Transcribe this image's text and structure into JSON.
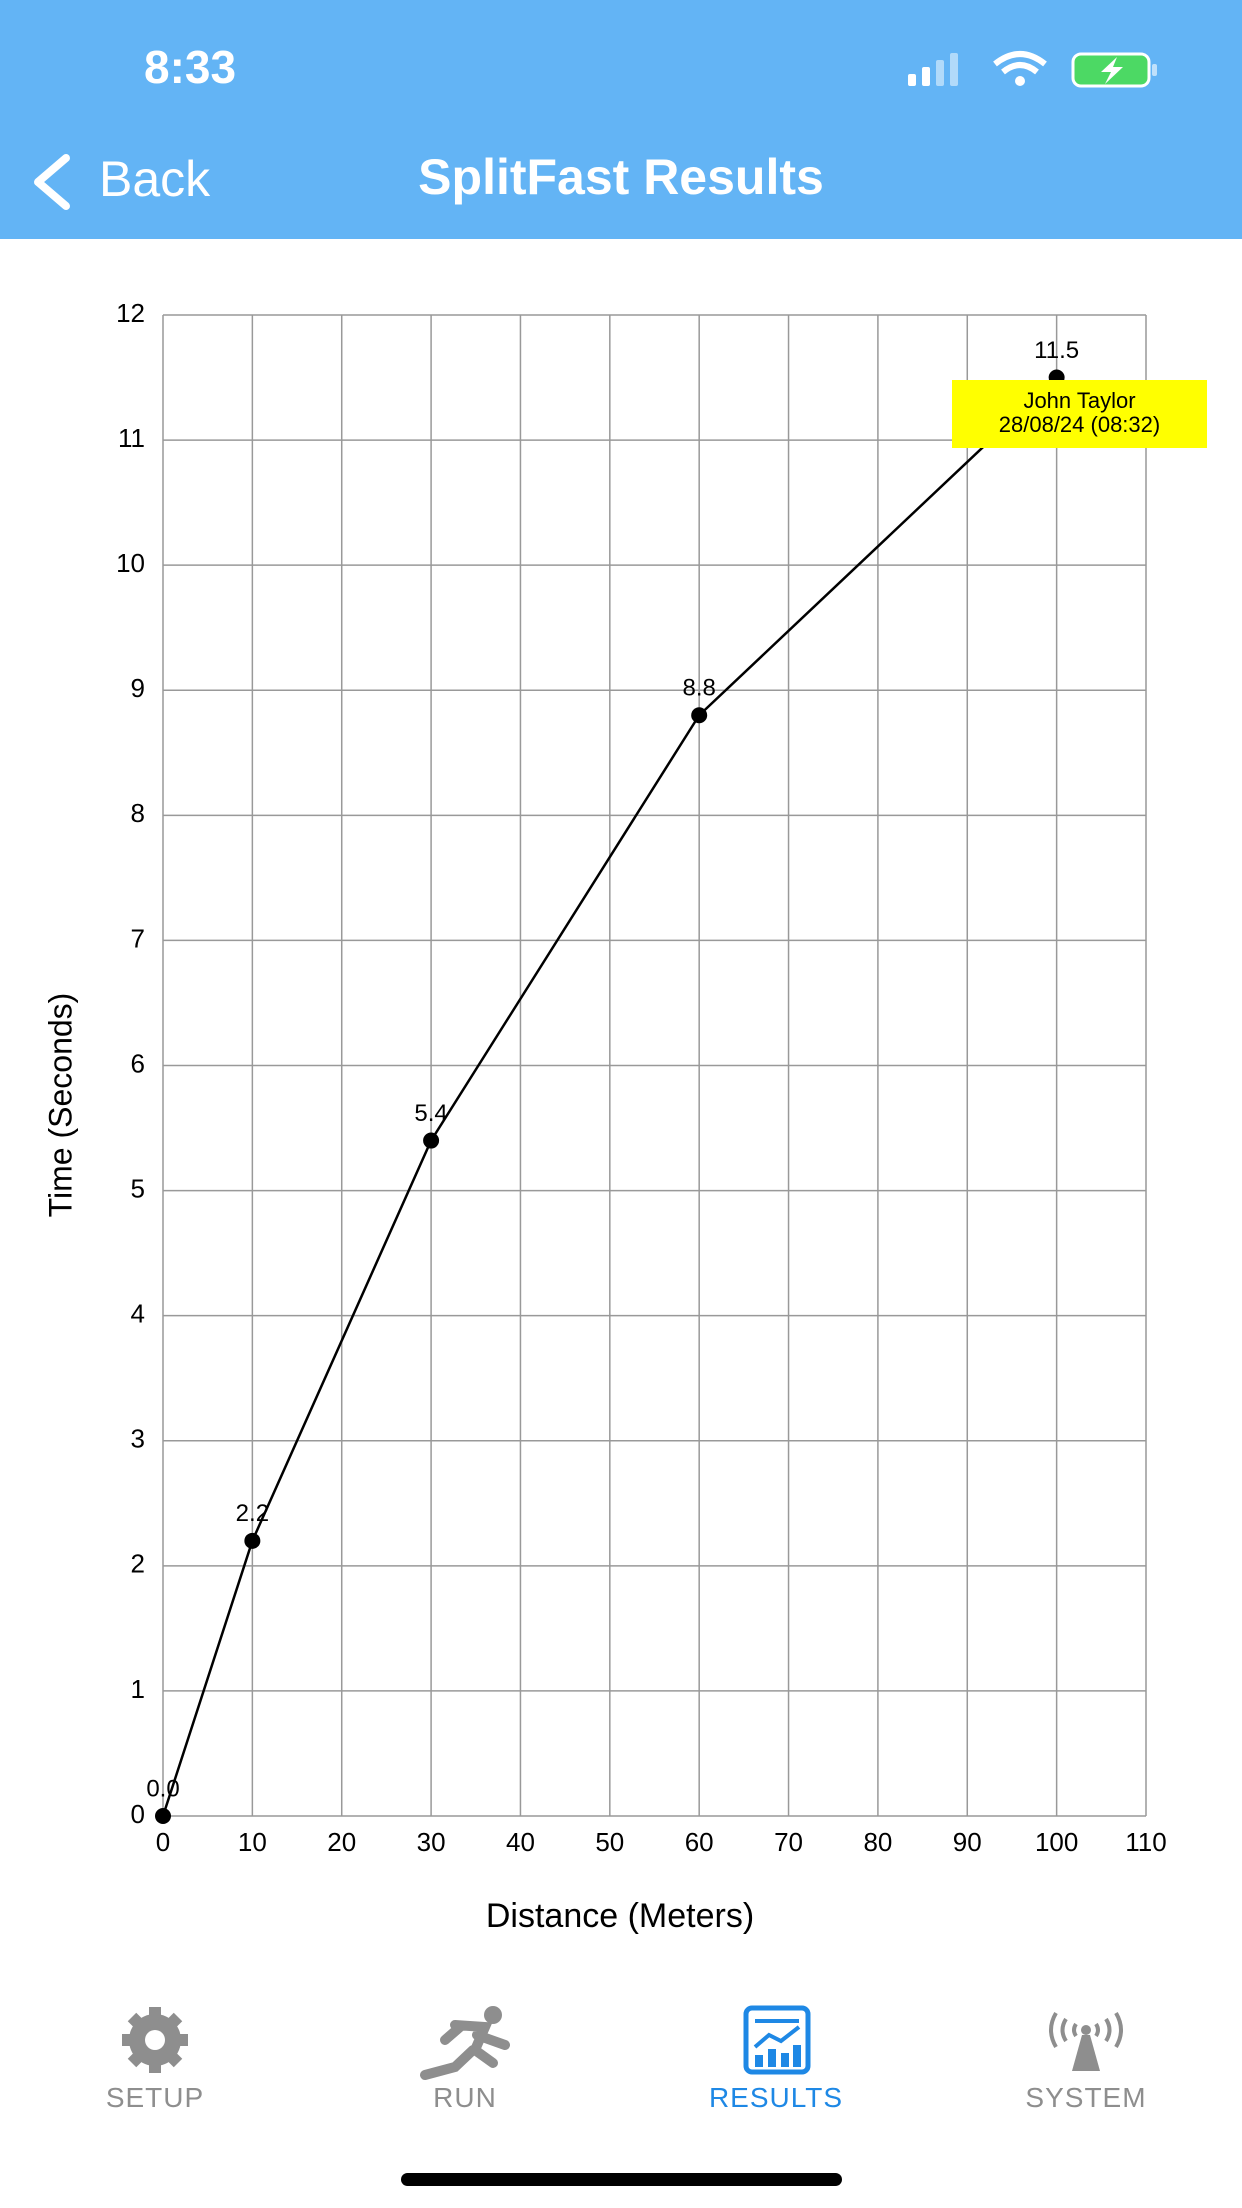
{
  "status_bar": {
    "time": "8:33"
  },
  "nav_bar": {
    "back": "Back",
    "title": "SplitFast Results"
  },
  "chart_data": {
    "type": "line",
    "x": [
      0,
      10,
      30,
      60,
      100
    ],
    "values": [
      0.0,
      2.2,
      5.4,
      8.8,
      11.5
    ],
    "value_labels": [
      "0.0",
      "2.2",
      "5.4",
      "8.8",
      "11.5"
    ],
    "color": "#000000",
    "xlim": [
      0,
      110
    ],
    "xticks": [
      0,
      10,
      20,
      30,
      40,
      50,
      60,
      70,
      80,
      90,
      100,
      110
    ],
    "ylim": [
      0,
      12
    ],
    "yticks": [
      0,
      1,
      2,
      3,
      4,
      5,
      6,
      7,
      8,
      9,
      10,
      11,
      12
    ],
    "xlabel": "Distance (Meters)",
    "ylabel": "Time (Seconds)",
    "grid": true,
    "annotation": [
      "John Taylor",
      "28/08/24 (08:32)"
    ]
  },
  "tab_bar": {
    "items": [
      "SETUP",
      "RUN",
      "RESULTS",
      "SYSTEM"
    ]
  }
}
